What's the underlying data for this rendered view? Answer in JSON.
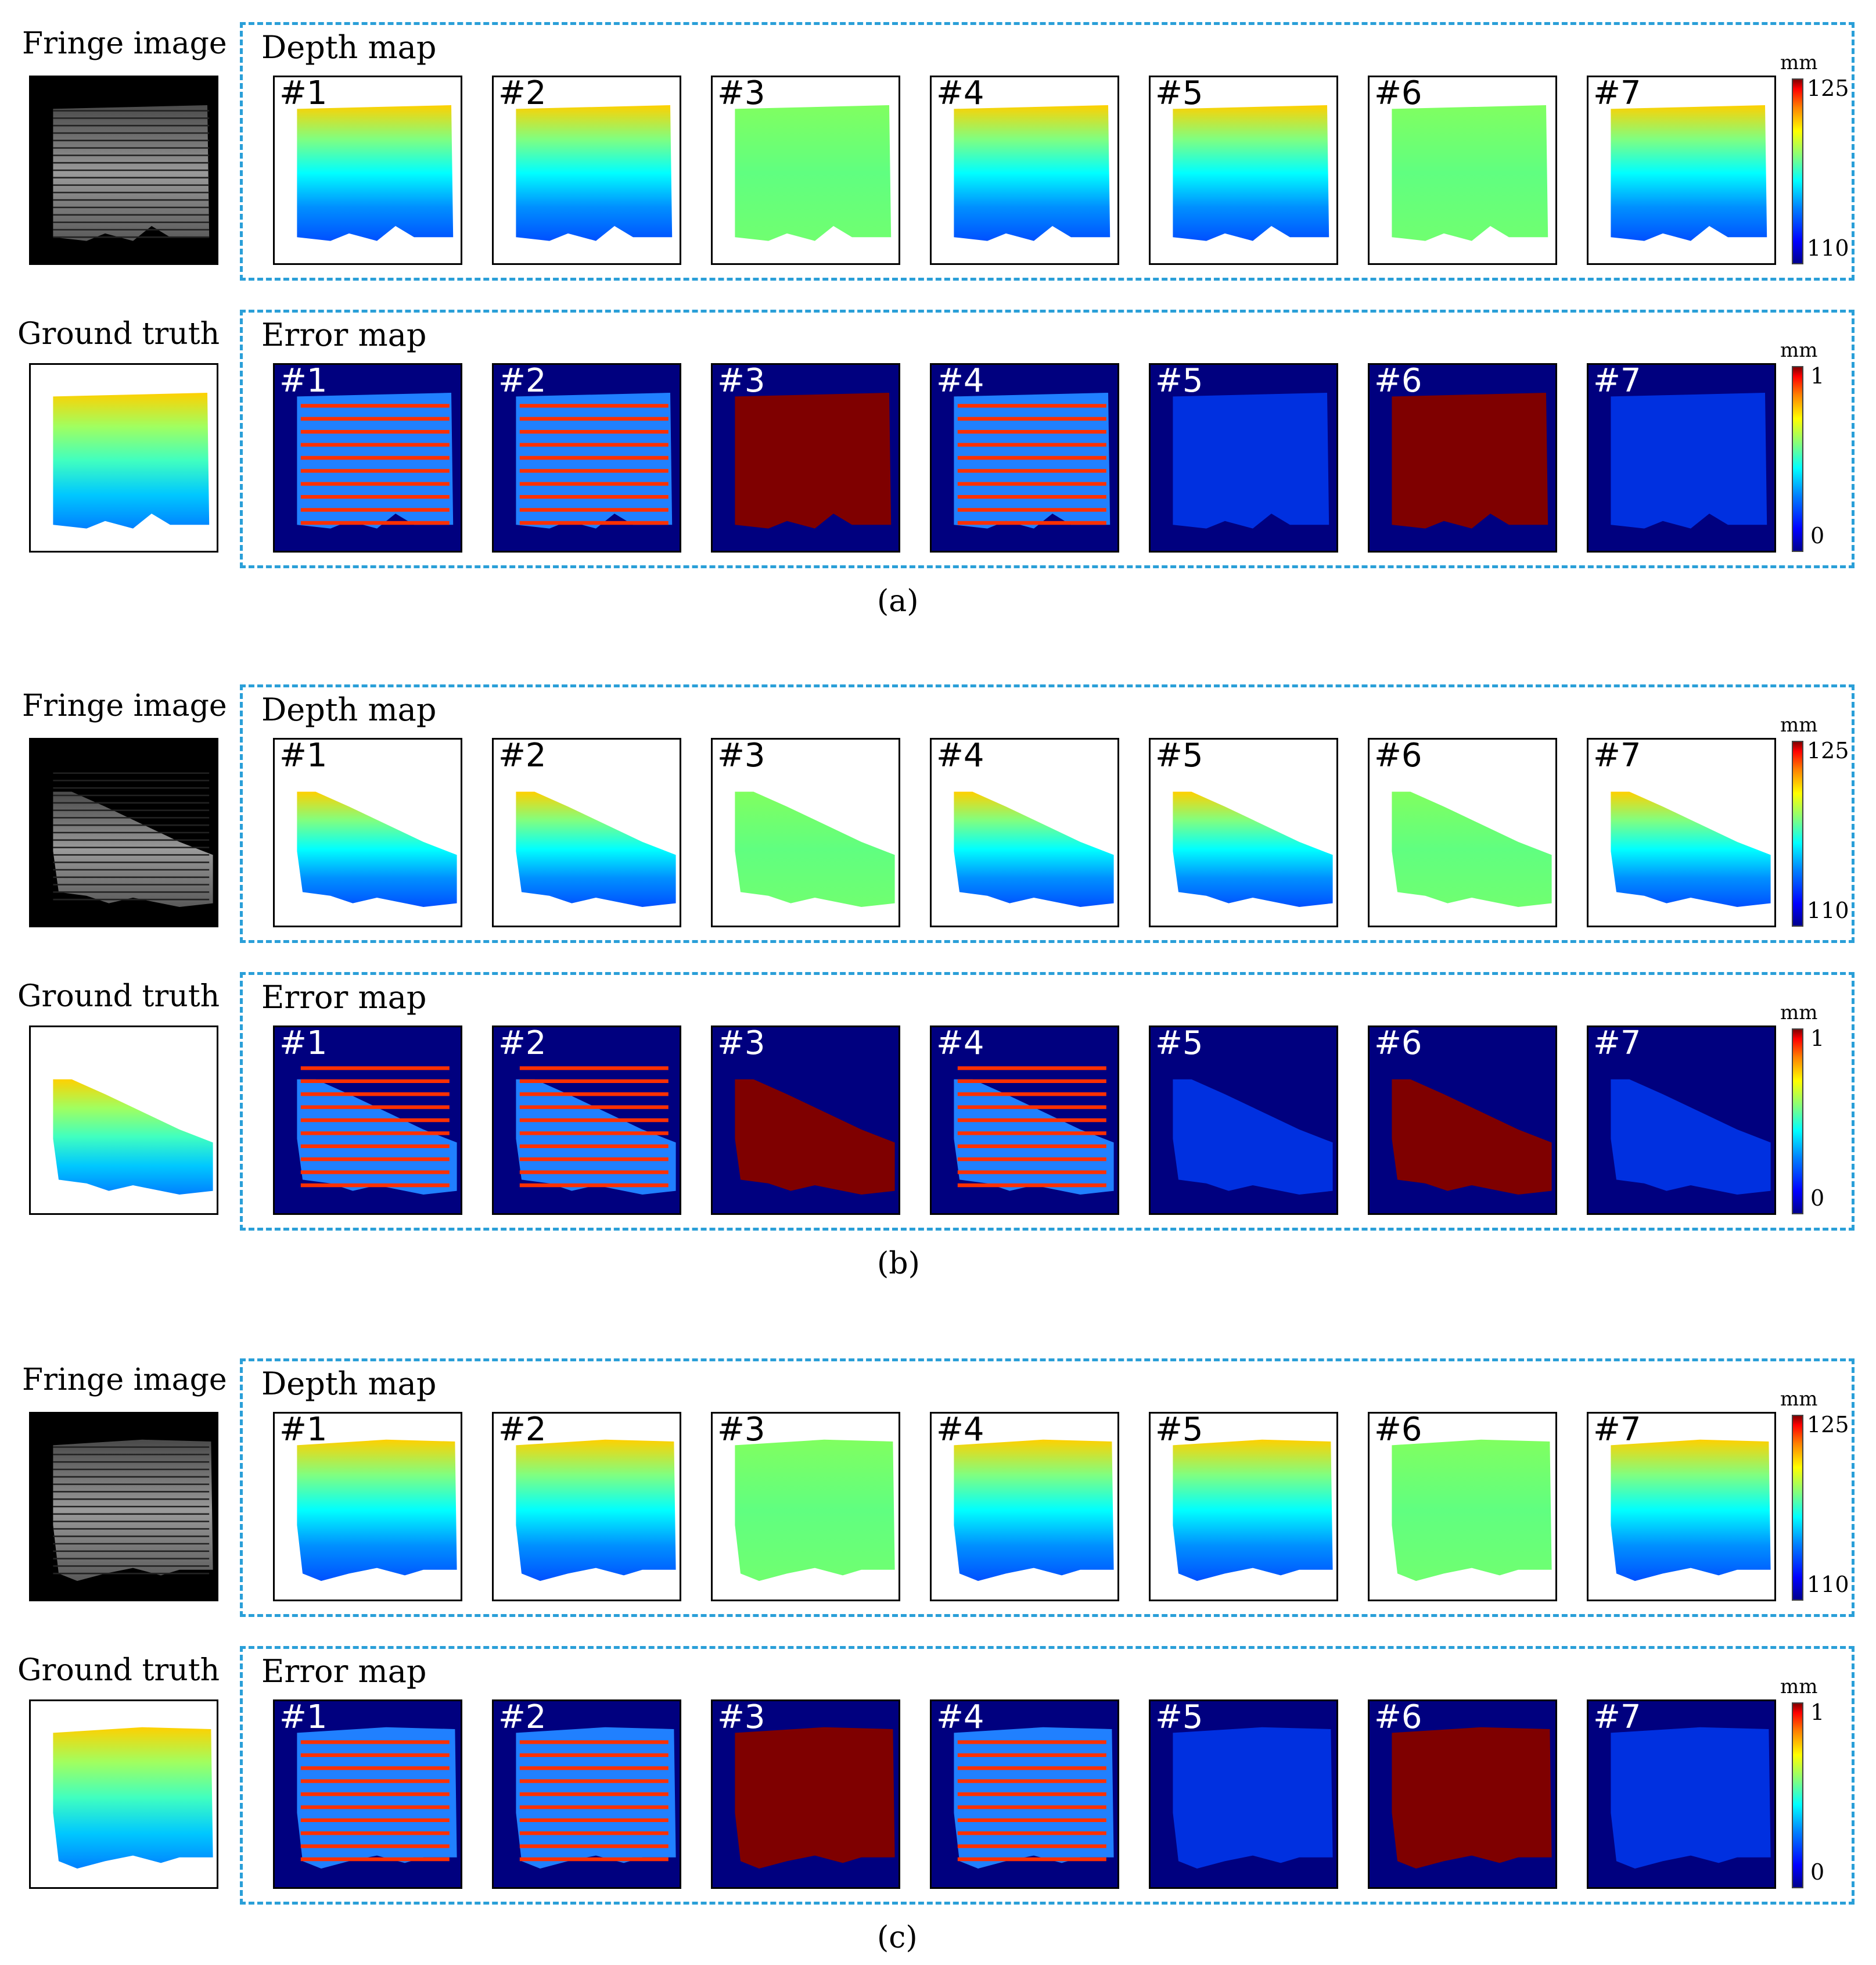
{
  "labels": {
    "fringe_image": "Fringe image",
    "ground_truth": "Ground truth",
    "depth_map": "Depth map",
    "error_map": "Error map"
  },
  "colorbars": {
    "unit": "mm",
    "depth_max": "125",
    "depth_min": "110",
    "error_max": "1",
    "error_min": "0",
    "colormap": "jet"
  },
  "methods": [
    "#1",
    "#2",
    "#3",
    "#4",
    "#5",
    "#6",
    "#7"
  ],
  "panels": [
    {
      "caption": "(a)"
    },
    {
      "caption": "(b)"
    },
    {
      "caption": "(c)"
    }
  ],
  "colors": {
    "dashed_border": "#2a9fd8",
    "error_background": "#00007f",
    "error_saturated": "#800000"
  }
}
